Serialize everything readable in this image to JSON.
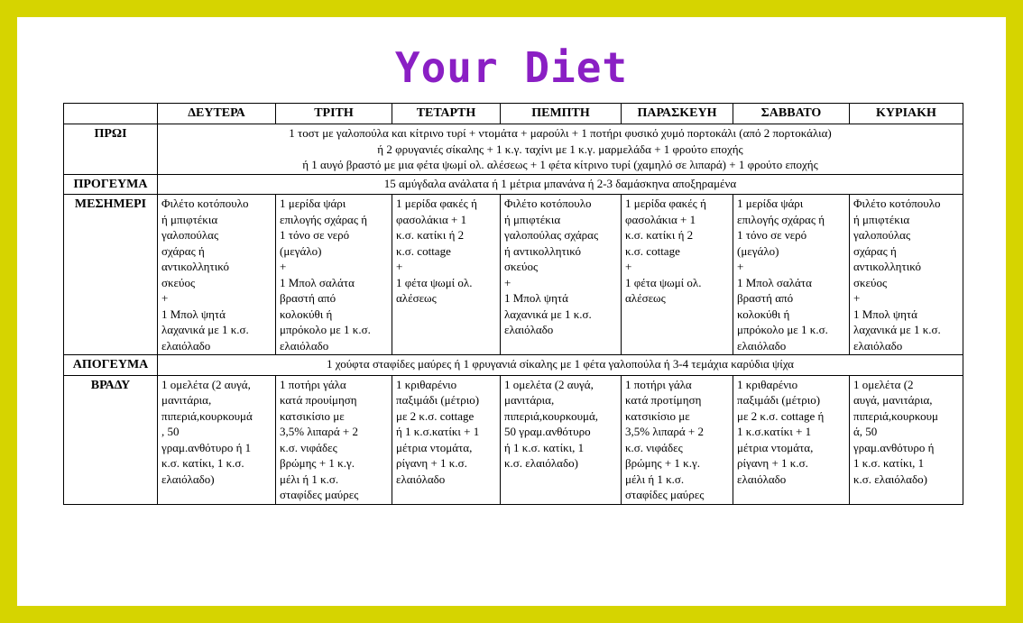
{
  "title": "Your Diet",
  "days": [
    "ΔΕΥΤΕΡΑ",
    "ΤΡΙΤΗ",
    "ΤΕΤΑΡΤΗ",
    "ΠΕΜΠΤΗ",
    "ΠΑΡΑΣΚΕΥΗ",
    "ΣΑΒΒΑΤΟ",
    "ΚΥΡΙΑΚΗ"
  ],
  "meals": {
    "proi": {
      "label": "ΠΡΩΙ",
      "lines": [
        "1 τοστ με γαλοπούλα και κίτρινο τυρί + ντομάτα + μαρούλι + 1 ποτήρι φυσικό χυμό πορτοκάλι (από 2 πορτοκάλια)",
        "ή 2 φρυγανιές σίκαλης  + 1 κ.γ. ταχίνι με 1 κ.γ. μαρμελάδα + 1 φρούτο εποχής",
        "ή 1 αυγό βραστό με μια φέτα ψωμί ολ. αλέσεως + 1 φέτα κίτρινο τυρί (χαμηλό σε λιπαρά) + 1 φρούτο εποχής"
      ]
    },
    "progevma": {
      "label": "ΠΡΟΓΕΥΜΑ",
      "text": "15 αμύγδαλα ανάλατα ή 1 μέτρια μπανάνα ή 2-3 δαμάσκηνα αποξηραμένα"
    },
    "mesimeri": {
      "label": "ΜΕΣΗΜΕΡΙ",
      "cells": [
        "Φιλέτο κοτόπουλο\nή μπιφτέκια\nγαλοπούλας\nσχάρας ή\nαντικολλητικό\nσκεύος\n+\n1 Μπολ ψητά\nλαχανικά με 1 κ.σ.\nελαιόλαδο",
        "1 μερίδα ψάρι\nεπιλογής σχάρας ή\n1 τόνο σε νερό\n(μεγάλο)\n+\n1 Μπολ σαλάτα\nβραστή από\nκολοκύθι ή\nμπρόκολο με 1 κ.σ.\nελαιόλαδο",
        "1 μερίδα φακές ή\nφασολάκια + 1\nκ.σ. κατίκι ή 2\nκ.σ. cottage\n+\n1 φέτα ψωμί ολ.\nαλέσεως",
        "Φιλέτο κοτόπουλο\nή μπιφτέκια\nγαλοπούλας σχάρας\nή αντικολλητικό\nσκεύος\n+\n1 Μπολ ψητά\nλαχανικά με 1 κ.σ.\nελαιόλαδο",
        "1 μερίδα φακές ή\nφασολάκια + 1\nκ.σ. κατίκι ή 2\nκ.σ. cottage\n+\n1 φέτα ψωμί ολ.\nαλέσεως",
        "1 μερίδα ψάρι\nεπιλογής σχάρας ή\n1 τόνο σε νερό\n(μεγάλο)\n+\n1 Μπολ σαλάτα\nβραστή από\nκολοκύθι ή\nμπρόκολο με 1 κ.σ.\nελαιόλαδο",
        "Φιλέτο κοτόπουλο\nή μπιφτέκια\nγαλοπούλας\nσχάρας ή\nαντικολλητικό\nσκεύος\n+\n1 Μπολ ψητά\nλαχανικά με 1 κ.σ.\nελαιόλαδο"
      ]
    },
    "apogevma": {
      "label": "ΑΠΟΓΕΥΜΑ",
      "text": "1 χούφτα σταφίδες μαύρες ή 1 φρυγανιά σίκαλης με 1 φέτα γαλοπούλα ή 3-4 τεμάχια καρύδια ψίχα"
    },
    "vradi": {
      "label": "ΒΡΑΔΥ",
      "cells": [
        "1 ομελέτα (2 αυγά,\nμανιτάρια,\nπιπεριά,κουρκουμά\n, 50\nγραμ.ανθότυρο ή 1\nκ.σ. κατίκι, 1 κ.σ.\nελαιόλαδο)",
        "1 ποτήρι γάλα\nκατά προυίμηση\nκατσικίσιο με\n3,5% λιπαρά + 2\nκ.σ. νιφάδες\nβρώμης + 1 κ.γ.\nμέλι ή 1 κ.σ.\nσταφίδες μαύρες",
        "1 κριθαρένιο\nπαξιμάδι (μέτριο)\nμε 2 κ.σ. cottage\nή 1 κ.σ.κατίκι + 1\nμέτρια ντομάτα,\nρίγανη + 1 κ.σ.\nελαιόλαδο",
        "1 ομελέτα (2 αυγά,\nμανιτάρια,\nπιπεριά,κουρκουμά,\n50  γραμ.ανθότυρο\nή 1 κ.σ. κατίκι, 1\nκ.σ. ελαιόλαδο)",
        "1 ποτήρι γάλα\nκατά προτίμηση\nκατσικίσιο με\n3,5% λιπαρά + 2\nκ.σ. νιφάδες\nβρώμης + 1 κ.γ.\nμέλι ή 1 κ.σ.\nσταφίδες μαύρες",
        "1 κριθαρένιο\nπαξιμάδι (μέτριο)\nμε 2 κ.σ. cottage ή\n1 κ.σ.κατίκι + 1\nμέτρια ντομάτα,\nρίγανη + 1 κ.σ.\nελαιόλαδο",
        "1 ομελέτα (2\nαυγά, μανιτάρια,\nπιπεριά,κουρκουμ\nά, 50\nγραμ.ανθότυρο ή\n1 κ.σ. κατίκι, 1\nκ.σ. ελαιόλαδο)"
      ]
    }
  }
}
